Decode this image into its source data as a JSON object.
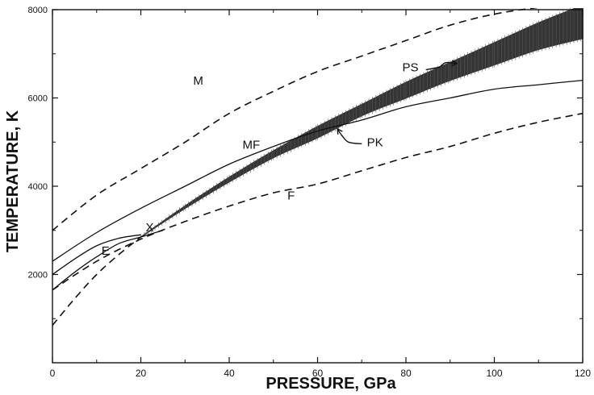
{
  "chart_data": {
    "type": "line",
    "title": "",
    "xlabel": "PRESSURE, GPa",
    "ylabel": "TEMPERATURE, K",
    "xlim": [
      0,
      120
    ],
    "ylim": [
      0,
      8000
    ],
    "x_ticks": [
      "0",
      "20",
      "40",
      "60",
      "80",
      "100",
      "120"
    ],
    "y_ticks": [
      "2000",
      "4000",
      "6000",
      "8000"
    ],
    "grid": false,
    "series": [
      {
        "name": "M",
        "style": "dashed",
        "x": [
          0,
          10,
          20,
          30,
          40,
          50,
          60,
          70,
          80,
          90,
          100,
          110,
          120
        ],
        "y": [
          3000,
          3800,
          4400,
          5000,
          5650,
          6150,
          6600,
          6950,
          7300,
          7650,
          7900,
          8050,
          8150
        ]
      },
      {
        "name": "MF",
        "style": "solid",
        "x": [
          0,
          10,
          20,
          30,
          40,
          50,
          60,
          70,
          80,
          90,
          100,
          110,
          120
        ],
        "y": [
          2300,
          2950,
          3500,
          4000,
          4500,
          4900,
          5250,
          5500,
          5800,
          6000,
          6200,
          6300,
          6400
        ]
      },
      {
        "name": "F",
        "style": "dashed",
        "x": [
          0,
          10,
          20,
          30,
          40,
          50,
          60,
          70,
          80,
          90,
          100,
          110,
          120
        ],
        "y": [
          1650,
          2300,
          2800,
          3200,
          3550,
          3850,
          4050,
          4350,
          4650,
          4900,
          5200,
          5450,
          5650
        ]
      },
      {
        "name": "E",
        "style": "solid",
        "x": [
          0,
          5,
          10,
          15,
          20
        ],
        "y": [
          2000,
          2350,
          2650,
          2820,
          2900
        ]
      },
      {
        "name": "",
        "style": "solid",
        "x": [
          0,
          5,
          10,
          15,
          20,
          25
        ],
        "y": [
          1650,
          2050,
          2400,
          2700,
          2850,
          3000
        ]
      },
      {
        "name": "",
        "style": "dashed",
        "x": [
          0,
          5,
          10,
          15,
          20
        ],
        "y": [
          850,
          1450,
          2000,
          2450,
          2850
        ]
      },
      {
        "name": "PK",
        "style": "band",
        "x": [
          20,
          30,
          40,
          50,
          60,
          70,
          80,
          90,
          100,
          110,
          120
        ],
        "y_low": [
          2850,
          3500,
          4100,
          4650,
          5100,
          5600,
          6000,
          6400,
          6750,
          7100,
          7350
        ],
        "y_high": [
          2850,
          3550,
          4200,
          4800,
          5350,
          5850,
          6350,
          6800,
          7250,
          7700,
          8100
        ]
      }
    ],
    "annotations": [
      {
        "text": "M",
        "x": 33,
        "y": 6300
      },
      {
        "text": "MF",
        "x": 45,
        "y": 4850
      },
      {
        "text": "F",
        "x": 54,
        "y": 3700
      },
      {
        "text": "E",
        "x": 12,
        "y": 2450
      },
      {
        "text": "X",
        "x": 22,
        "y": 2980
      },
      {
        "text": "PS",
        "x": 81,
        "y": 6600
      },
      {
        "text": "PK",
        "x": 73,
        "y": 4900
      }
    ],
    "colors": {
      "ink": "#111111",
      "band": "#1a1a1a",
      "background": "#ffffff"
    }
  }
}
